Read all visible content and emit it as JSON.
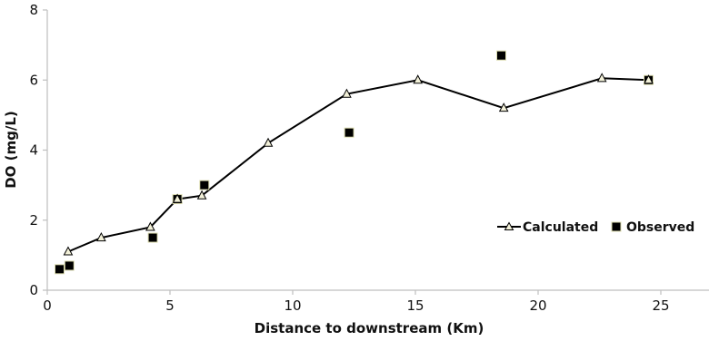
{
  "chart_data": {
    "type": "line",
    "title": "",
    "xlabel": "Distance to downstream (Km)",
    "ylabel": "DO (mg/L)",
    "xlim": [
      0,
      27
    ],
    "ylim": [
      0,
      8
    ],
    "xticks": [
      0,
      5,
      10,
      15,
      20,
      25
    ],
    "yticks": [
      0,
      2,
      4,
      6,
      8
    ],
    "grid": false,
    "legend_position": "bottom-right",
    "series": [
      {
        "name": "Calculated",
        "style": "line-triangle",
        "color": "#000000",
        "marker_fill": "#f2f0d8",
        "points": [
          {
            "x": 0.85,
            "y": 1.1
          },
          {
            "x": 2.2,
            "y": 1.5
          },
          {
            "x": 4.2,
            "y": 1.8
          },
          {
            "x": 5.3,
            "y": 2.6
          },
          {
            "x": 6.3,
            "y": 2.7
          },
          {
            "x": 9.0,
            "y": 4.2
          },
          {
            "x": 12.2,
            "y": 5.6
          },
          {
            "x": 15.1,
            "y": 6.0
          },
          {
            "x": 18.6,
            "y": 5.2
          },
          {
            "x": 22.6,
            "y": 6.05
          },
          {
            "x": 24.5,
            "y": 6.0
          }
        ]
      },
      {
        "name": "Observed",
        "style": "square",
        "color": "#000000",
        "points": [
          {
            "x": 0.5,
            "y": 0.6
          },
          {
            "x": 0.9,
            "y": 0.7
          },
          {
            "x": 4.3,
            "y": 1.5
          },
          {
            "x": 5.3,
            "y": 2.6
          },
          {
            "x": 6.4,
            "y": 3.0
          },
          {
            "x": 12.3,
            "y": 4.5
          },
          {
            "x": 18.5,
            "y": 6.7
          },
          {
            "x": 24.5,
            "y": 6.0
          }
        ]
      }
    ]
  }
}
